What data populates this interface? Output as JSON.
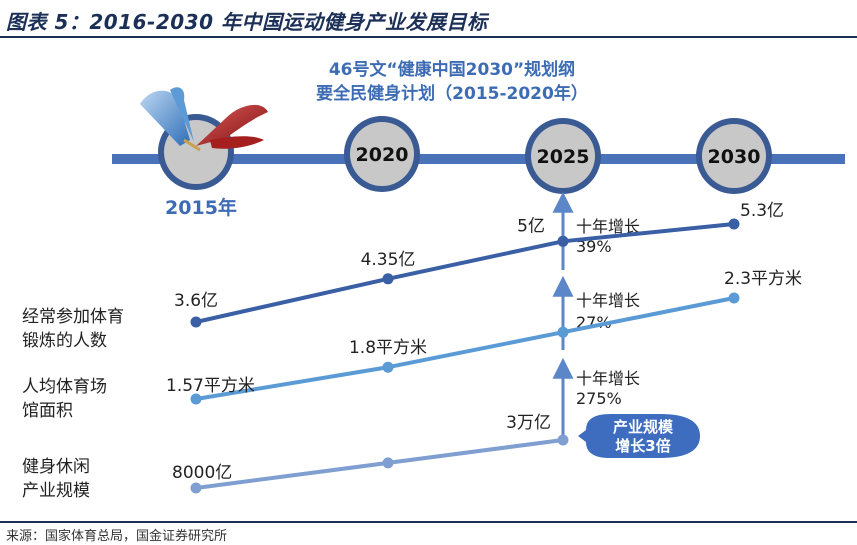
{
  "header": {
    "title": "图表 5：2016-2030 年中国运动健身产业发展目标"
  },
  "footer": {
    "source": "来源：国家体育总局，国金证券研究所"
  },
  "colors": {
    "title": "#1b2f57",
    "timeline": "#4a72b8",
    "node_fill": "#c8c8c8",
    "node_ring": "#3a5a94",
    "series_dark": "#3a5fa5",
    "series_mid": "#5b9bd5",
    "series_light": "#7f9fd0",
    "badge": "#3e6dc0",
    "plan_text": "#3d6cb4"
  },
  "chart_data": {
    "type": "line",
    "timeline": {
      "years": [
        "2015年",
        "2020",
        "2025",
        "2030"
      ],
      "plan_note": [
        "46号文“健康中国2030”规划纲",
        "要全民健身计划（2015-2020年）"
      ]
    },
    "x": [
      "2015",
      "2020",
      "2025",
      "2030"
    ],
    "series": [
      {
        "name": [
          "经常参加体育",
          "锻炼的人数"
        ],
        "values": [
          3.6,
          4.35,
          5,
          5.3
        ],
        "value_labels": [
          "3.6亿",
          "4.35亿",
          "5亿",
          "5.3亿"
        ],
        "growth": [
          "十年增长",
          "39%"
        ]
      },
      {
        "name": [
          "人均体育场",
          "馆面积"
        ],
        "values": [
          1.57,
          1.8,
          null,
          2.3
        ],
        "value_labels": [
          "1.57平方米",
          "1.8平方米",
          "",
          "2.3平方米"
        ],
        "growth": [
          "十年增长",
          "27%"
        ]
      },
      {
        "name": [
          "健身休闲",
          "产业规模"
        ],
        "values": [
          8000,
          null,
          30000,
          null
        ],
        "value_labels": [
          "8000亿",
          "",
          "3万亿",
          ""
        ],
        "growth": [
          "十年增长",
          "275%"
        ],
        "badge": [
          "产业规模",
          "增长3倍"
        ]
      }
    ]
  }
}
